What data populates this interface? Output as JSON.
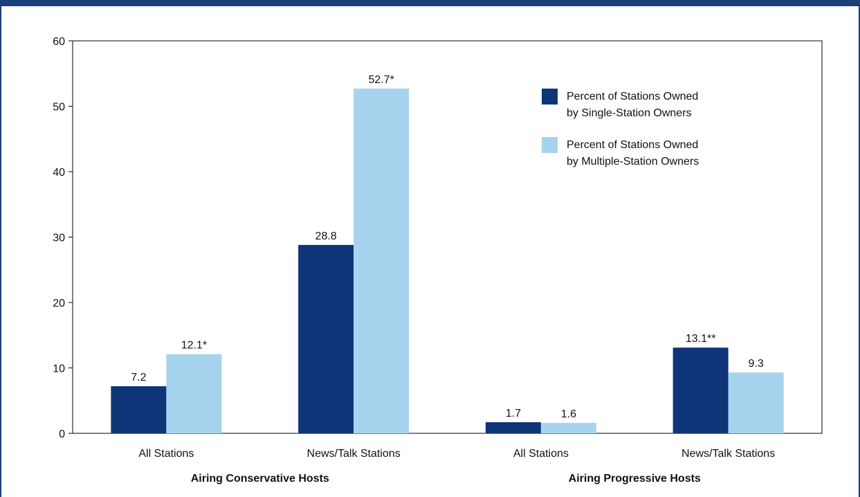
{
  "chart_data": {
    "type": "bar",
    "title": "",
    "xlabel": "",
    "ylabel": "",
    "ylim": [
      0,
      60
    ],
    "yticks": [
      0,
      10,
      20,
      30,
      40,
      50,
      60
    ],
    "grid": false,
    "legend_position": "top-right",
    "categories": [
      "All Stations",
      "News/Talk Stations",
      "All Stations",
      "News/Talk Stations"
    ],
    "groups": [
      {
        "label": "Airing Conservative Hosts",
        "categories": [
          0,
          1
        ]
      },
      {
        "label": "Airing Progressive Hosts",
        "categories": [
          2,
          3
        ]
      }
    ],
    "series": [
      {
        "name": [
          "Percent of Stations Owned",
          "by Single-Station Owners"
        ],
        "color": "#0d3577",
        "values": [
          7.2,
          28.8,
          1.7,
          13.1
        ],
        "labels": [
          "7.2",
          "28.8",
          "1.7",
          "13.1**"
        ]
      },
      {
        "name": [
          "Percent of Stations Owned",
          "by Multiple-Station Owners"
        ],
        "color": "#a6d4ee",
        "values": [
          12.1,
          52.7,
          1.6,
          9.3
        ],
        "labels": [
          "12.1*",
          "52.7*",
          "1.6",
          "9.3"
        ]
      }
    ]
  }
}
